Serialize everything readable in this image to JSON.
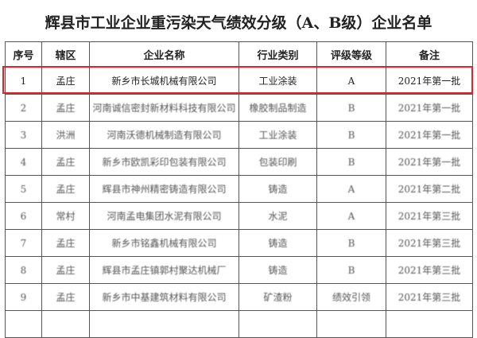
{
  "title": "辉县市工业企业重污染天气绩效分级（A、B级）企业名单",
  "columns": [
    "序号",
    "辖区",
    "企业名称",
    "行业类别",
    "评级等级",
    "备注"
  ],
  "highlight_color": "#e5202a",
  "rows": [
    [
      "1",
      "孟庄",
      "新乡市长城机械有限公司",
      "工业涂装",
      "A",
      "2021年第一批"
    ],
    [
      "2",
      "孟庄",
      "河南诚信密封新材料科技有限公司",
      "橡胶制品制造",
      "B",
      "2021年第一批"
    ],
    [
      "3",
      "洪洲",
      "河南沃德机械制造有限公司",
      "工业涂装",
      "B",
      "2021年第一批"
    ],
    [
      "4",
      "孟庄",
      "新乡市欧凯彩印包装有限公司",
      "包装印刷",
      "B",
      "2021年第一批"
    ],
    [
      "5",
      "孟庄",
      "辉县市神州精密铸造有限公司",
      "铸造",
      "A",
      "2021年第二批"
    ],
    [
      "6",
      "常村",
      "河南孟电集团水泥有限公司",
      "水泥",
      "A",
      "2021年第三批"
    ],
    [
      "7",
      "孟庄",
      "新乡市铭鑫机械有限公司",
      "铸造",
      "B",
      "2021年第三批"
    ],
    [
      "8",
      "孟庄",
      "辉县市孟庄镇郭村聚达机械厂",
      "铸造",
      "B",
      "2021年第三批"
    ],
    [
      "9",
      "孟庄",
      "新乡市中基建筑材料有限公司",
      "矿渣粉",
      "绩效引领",
      "2021年第三批"
    ]
  ]
}
